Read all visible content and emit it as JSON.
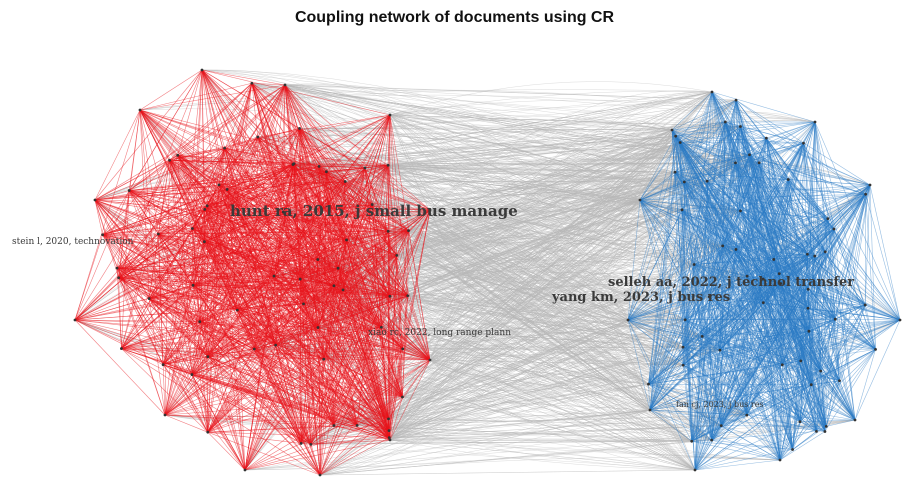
{
  "title": "Coupling network of documents using CR",
  "clusters": [
    {
      "name": "red-cluster",
      "color": "#e8141c"
    },
    {
      "name": "blue-cluster",
      "color": "#2b7cc6"
    }
  ],
  "bridge_color": "#b8b8b8",
  "labels": {
    "hunt": "hunt ra, 2015, j small bus manage",
    "stein": "stein l, 2020, technovation",
    "selleh": "selleh aa, 2022, j technol transfer",
    "yang": "yang km, 2023, j bus res",
    "xiao": "xiao rc, 2022, long range plann",
    "fan": "fan cj, 2023, j bus res"
  }
}
